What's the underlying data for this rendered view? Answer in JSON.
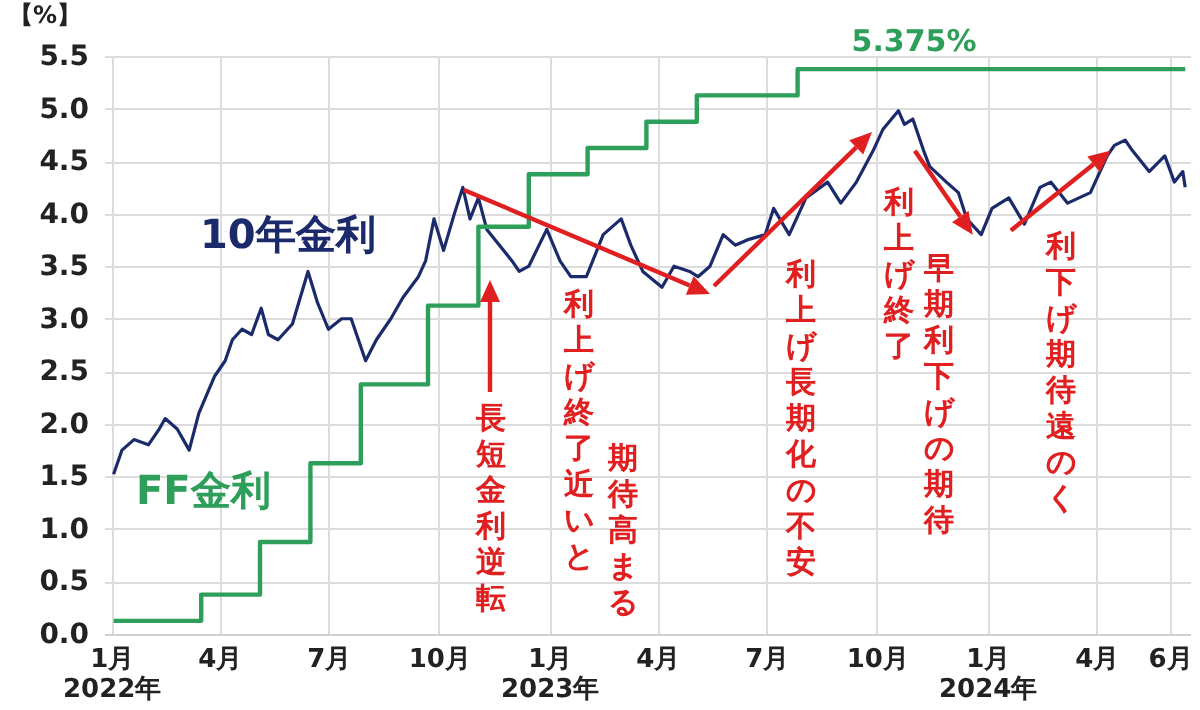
{
  "chart_data": {
    "type": "line",
    "ylabel": "【%】",
    "xlim": [
      "2021-12-26",
      "2024-06-18"
    ],
    "xticks": [
      {
        "value": "2022-01-01",
        "label": "1月\n2022年"
      },
      {
        "value": "2022-04-01",
        "label": "4月"
      },
      {
        "value": "2022-07-01",
        "label": "7月"
      },
      {
        "value": "2022-10-01",
        "label": "10月"
      },
      {
        "value": "2023-01-01",
        "label": "1月\n2023年"
      },
      {
        "value": "2023-04-01",
        "label": "4月"
      },
      {
        "value": "2023-07-01",
        "label": "7月"
      },
      {
        "value": "2023-10-01",
        "label": "10月"
      },
      {
        "value": "2024-01-01",
        "label": "1月\n2024年"
      },
      {
        "value": "2024-04-01",
        "label": "4月"
      },
      {
        "value": "2024-06-01",
        "label": "6月"
      }
    ],
    "ylim": [
      0,
      5.5
    ],
    "yticks": [
      {
        "value": 0,
        "label": "0.0"
      },
      {
        "value": 0.5,
        "label": "0.5"
      },
      {
        "value": 1,
        "label": "1.0"
      },
      {
        "value": 1.5,
        "label": "1.5"
      },
      {
        "value": 2,
        "label": "2.0"
      },
      {
        "value": 2.5,
        "label": "2.5"
      },
      {
        "value": 3,
        "label": "3.0"
      },
      {
        "value": 3.5,
        "label": "3.5"
      },
      {
        "value": 4,
        "label": "4.0"
      },
      {
        "value": 4.5,
        "label": "4.5"
      },
      {
        "value": 5,
        "label": "5.0"
      },
      {
        "value": 5.5,
        "label": "5.5"
      }
    ],
    "grid": true,
    "series": [
      {
        "name": "10年金利",
        "color": "#1b2a6b",
        "type": "line",
        "x": [
          "2022-01-03",
          "2022-01-10",
          "2022-01-20",
          "2022-02-01",
          "2022-02-10",
          "2022-02-15",
          "2022-02-25",
          "2022-03-07",
          "2022-03-15",
          "2022-03-28",
          "2022-04-06",
          "2022-04-12",
          "2022-04-20",
          "2022-04-28",
          "2022-05-06",
          "2022-05-12",
          "2022-05-20",
          "2022-06-01",
          "2022-06-14",
          "2022-06-22",
          "2022-07-01",
          "2022-07-12",
          "2022-07-20",
          "2022-08-01",
          "2022-08-10",
          "2022-08-22",
          "2022-09-01",
          "2022-09-14",
          "2022-09-20",
          "2022-09-27",
          "2022-10-05",
          "2022-10-14",
          "2022-10-21",
          "2022-10-27",
          "2022-11-03",
          "2022-11-10",
          "2022-11-17",
          "2022-12-01",
          "2022-12-07",
          "2022-12-15",
          "2022-12-30",
          "2023-01-10",
          "2023-01-19",
          "2023-02-01",
          "2023-02-15",
          "2023-03-02",
          "2023-03-10",
          "2023-03-20",
          "2023-04-05",
          "2023-04-15",
          "2023-04-28",
          "2023-05-05",
          "2023-05-15",
          "2023-05-26",
          "2023-06-05",
          "2023-06-15",
          "2023-06-30",
          "2023-07-07",
          "2023-07-20",
          "2023-08-03",
          "2023-08-21",
          "2023-09-01",
          "2023-09-14",
          "2023-09-28",
          "2023-10-06",
          "2023-10-19",
          "2023-10-24",
          "2023-10-31",
          "2023-11-09",
          "2023-11-14",
          "2023-11-28",
          "2023-12-08",
          "2023-12-15",
          "2023-12-27",
          "2024-01-05",
          "2024-01-19",
          "2024-02-01",
          "2024-02-14",
          "2024-02-23",
          "2024-03-08",
          "2024-03-27",
          "2024-04-10",
          "2024-04-16",
          "2024-04-25",
          "2024-05-01",
          "2024-05-15",
          "2024-05-28",
          "2024-06-05",
          "2024-06-12",
          "2024-06-14"
        ],
        "values": [
          1.52,
          1.75,
          1.85,
          1.8,
          1.95,
          2.05,
          1.95,
          1.75,
          2.1,
          2.45,
          2.6,
          2.8,
          2.9,
          2.85,
          3.1,
          2.85,
          2.8,
          2.95,
          3.45,
          3.15,
          2.9,
          3.0,
          3.0,
          2.6,
          2.8,
          3.0,
          3.2,
          3.4,
          3.55,
          3.95,
          3.65,
          4.0,
          4.25,
          3.95,
          4.15,
          3.85,
          3.75,
          3.55,
          3.45,
          3.5,
          3.85,
          3.55,
          3.4,
          3.4,
          3.8,
          3.95,
          3.7,
          3.45,
          3.3,
          3.5,
          3.45,
          3.4,
          3.5,
          3.8,
          3.7,
          3.75,
          3.8,
          4.05,
          3.8,
          4.15,
          4.3,
          4.1,
          4.3,
          4.6,
          4.8,
          4.98,
          4.85,
          4.9,
          4.6,
          4.45,
          4.3,
          4.2,
          3.95,
          3.8,
          4.05,
          4.15,
          3.9,
          4.25,
          4.3,
          4.1,
          4.2,
          4.55,
          4.65,
          4.7,
          4.6,
          4.4,
          4.55,
          4.3,
          4.4,
          4.25
        ]
      },
      {
        "name": "FF金利",
        "color": "#2e9e5b",
        "type": "step",
        "x": [
          "2022-01-03",
          "2022-03-17",
          "2022-05-05",
          "2022-06-16",
          "2022-07-28",
          "2022-09-22",
          "2022-11-03",
          "2022-12-15",
          "2023-02-02",
          "2023-03-23",
          "2023-05-04",
          "2023-07-27",
          "2024-06-14"
        ],
        "values": [
          0.125,
          0.375,
          0.875,
          1.625,
          2.375,
          3.125,
          3.875,
          4.375,
          4.625,
          4.875,
          5.125,
          5.375,
          5.375
        ]
      }
    ],
    "annotations": [
      "長短金利逆転",
      "利上げ終了近いと",
      "期待高まる",
      "利上げ長期化の不安",
      {
        "text": "利上げ終了",
        "x": "2023-12-20",
        "y": 3.8
      },
      "早期利下げの期待",
      {
        "text": "利下げ期待遠のく",
        "x": "2024-04-13",
        "y": 4.6
      },
      {
        "text": "5.375%",
        "x": "2023-11-01",
        "y": 5.375
      }
    ]
  }
}
